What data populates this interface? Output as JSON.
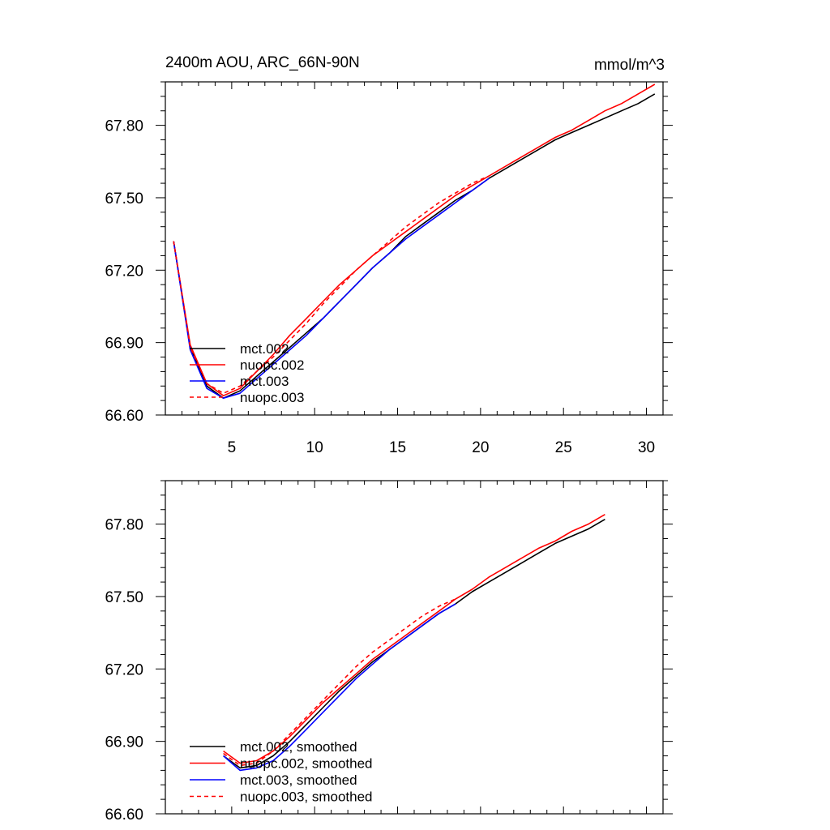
{
  "chart_data": [
    {
      "type": "line",
      "title": "2400m AOU, ARC_66N-90N",
      "units": "mmol/m^3",
      "xlim": [
        1,
        31
      ],
      "ylim": [
        66.6,
        67.98
      ],
      "xticks": [
        5,
        10,
        15,
        20,
        25,
        30
      ],
      "xtick_labels": [
        "5",
        "10",
        "15",
        "20",
        "25",
        "30"
      ],
      "yticks": [
        66.6,
        66.9,
        67.2,
        67.5,
        67.8
      ],
      "ytick_labels": [
        "66.60",
        "66.90",
        "67.20",
        "67.50",
        "67.80"
      ],
      "legend_position": "lower-left",
      "series": [
        {
          "name": "mct.002",
          "color": "#000000",
          "dash": "solid",
          "x": [
            1.5,
            2.5,
            3.5,
            4.5,
            5.5,
            6.5,
            7.5,
            8.5,
            9.5,
            10.5,
            11.5,
            12.5,
            13.5,
            14.5,
            15.5,
            16.5,
            17.5,
            18.5,
            19.5,
            20.5,
            21.5,
            22.5,
            23.5,
            24.5,
            25.5,
            26.5,
            27.5,
            28.5,
            29.5,
            30.5
          ],
          "y": [
            67.32,
            66.88,
            66.72,
            66.67,
            66.7,
            66.76,
            66.82,
            66.88,
            66.94,
            67.0,
            67.07,
            67.14,
            67.21,
            67.27,
            67.34,
            67.39,
            67.44,
            67.49,
            67.53,
            67.58,
            67.62,
            67.66,
            67.7,
            67.74,
            67.77,
            67.8,
            67.83,
            67.86,
            67.89,
            67.93
          ]
        },
        {
          "name": "nuopc.002",
          "color": "#ff0000",
          "dash": "solid",
          "x": [
            1.5,
            2.5,
            3.5,
            4.5,
            5.5,
            6.5,
            7.5,
            8.5,
            9.5,
            10.5,
            11.5,
            12.5,
            13.5,
            14.5,
            15.5,
            16.5,
            17.5,
            18.5,
            19.5,
            20.5,
            21.5,
            22.5,
            23.5,
            24.5,
            25.5,
            26.5,
            27.5,
            28.5,
            29.5,
            30.5
          ],
          "y": [
            67.32,
            66.89,
            66.73,
            66.68,
            66.71,
            66.78,
            66.85,
            66.93,
            67.0,
            67.07,
            67.14,
            67.2,
            67.26,
            67.31,
            67.36,
            67.41,
            67.46,
            67.51,
            67.55,
            67.59,
            67.63,
            67.67,
            67.71,
            67.75,
            67.78,
            67.82,
            67.86,
            67.89,
            67.93,
            67.97
          ]
        },
        {
          "name": "mct.003",
          "color": "#0000ff",
          "dash": "solid",
          "x": [
            1.5,
            2.5,
            3.5,
            4.5,
            5.5,
            6.5,
            7.5,
            8.5,
            9.5,
            10.5,
            11.5,
            12.5,
            13.5,
            14.5,
            15.5,
            16.5,
            17.5,
            18.5,
            19.5,
            20.5
          ],
          "y": [
            67.32,
            66.87,
            66.71,
            66.67,
            66.69,
            66.75,
            66.81,
            66.87,
            66.93,
            67.0,
            67.07,
            67.14,
            67.21,
            67.27,
            67.33,
            67.38,
            67.43,
            67.48,
            67.53,
            67.58
          ]
        },
        {
          "name": "nuopc.003",
          "color": "#ff0000",
          "dash": "dashed",
          "x": [
            1.5,
            2.5,
            3.5,
            4.5,
            5.5,
            6.5,
            7.5,
            8.5,
            9.5,
            10.5,
            11.5,
            12.5,
            13.5,
            14.5,
            15.5,
            16.5,
            17.5,
            18.5,
            19.5,
            20.5
          ],
          "y": [
            67.32,
            66.88,
            66.73,
            66.69,
            66.72,
            66.78,
            66.84,
            66.91,
            66.98,
            67.06,
            67.13,
            67.2,
            67.26,
            67.32,
            67.38,
            67.43,
            67.48,
            67.52,
            67.56,
            67.59
          ]
        }
      ]
    },
    {
      "type": "line",
      "title": "",
      "units": "",
      "xlim": [
        1,
        31
      ],
      "ylim": [
        66.6,
        67.98
      ],
      "xticks": [
        5,
        10,
        15,
        20,
        25,
        30
      ],
      "xtick_labels": [],
      "yticks": [
        66.6,
        66.9,
        67.2,
        67.5,
        67.8
      ],
      "ytick_labels": [
        "66.60",
        "66.90",
        "67.20",
        "67.50",
        "67.80"
      ],
      "legend_position": "lower-left",
      "series": [
        {
          "name": "mct.002, smoothed",
          "color": "#000000",
          "dash": "solid",
          "x": [
            4.5,
            5.5,
            6.5,
            7.5,
            8.5,
            9.5,
            10.5,
            11.5,
            12.5,
            13.5,
            14.5,
            15.5,
            16.5,
            17.5,
            18.5,
            19.5,
            20.5,
            21.5,
            22.5,
            23.5,
            24.5,
            25.5,
            26.5,
            27.5
          ],
          "y": [
            66.84,
            66.79,
            66.8,
            66.84,
            66.9,
            66.97,
            67.04,
            67.11,
            67.17,
            67.23,
            67.28,
            67.33,
            67.38,
            67.43,
            67.47,
            67.52,
            67.56,
            67.6,
            67.64,
            67.68,
            67.72,
            67.75,
            67.78,
            67.82
          ]
        },
        {
          "name": "nuopc.002, smoothed",
          "color": "#ff0000",
          "dash": "solid",
          "x": [
            4.5,
            5.5,
            6.5,
            7.5,
            8.5,
            9.5,
            10.5,
            11.5,
            12.5,
            13.5,
            14.5,
            15.5,
            16.5,
            17.5,
            18.5,
            19.5,
            20.5,
            21.5,
            22.5,
            23.5,
            24.5,
            25.5,
            26.5,
            27.5
          ],
          "y": [
            66.86,
            66.81,
            66.82,
            66.86,
            66.92,
            66.99,
            67.06,
            67.12,
            67.18,
            67.24,
            67.29,
            67.34,
            67.39,
            67.44,
            67.49,
            67.53,
            67.58,
            67.62,
            67.66,
            67.7,
            67.73,
            67.77,
            67.8,
            67.84
          ]
        },
        {
          "name": "mct.003, smoothed",
          "color": "#0000ff",
          "dash": "solid",
          "x": [
            4.5,
            5.5,
            6.5,
            7.5,
            8.5,
            9.5,
            10.5,
            11.5,
            12.5,
            13.5,
            14.5,
            15.5,
            16.5,
            17.5,
            18.5
          ],
          "y": [
            66.84,
            66.78,
            66.79,
            66.82,
            66.88,
            66.95,
            67.02,
            67.09,
            67.16,
            67.22,
            67.28,
            67.33,
            67.38,
            67.43,
            67.47
          ]
        },
        {
          "name": "nuopc.003, smoothed",
          "color": "#ff0000",
          "dash": "dashed",
          "x": [
            4.5,
            5.5,
            6.5,
            7.5,
            8.5,
            9.5,
            10.5,
            11.5,
            12.5,
            13.5,
            14.5,
            15.5,
            16.5,
            17.5,
            18.5
          ],
          "y": [
            66.85,
            66.8,
            66.81,
            66.86,
            66.93,
            67.0,
            67.07,
            67.14,
            67.21,
            67.27,
            67.32,
            67.37,
            67.42,
            67.46,
            67.49
          ]
        }
      ]
    }
  ]
}
